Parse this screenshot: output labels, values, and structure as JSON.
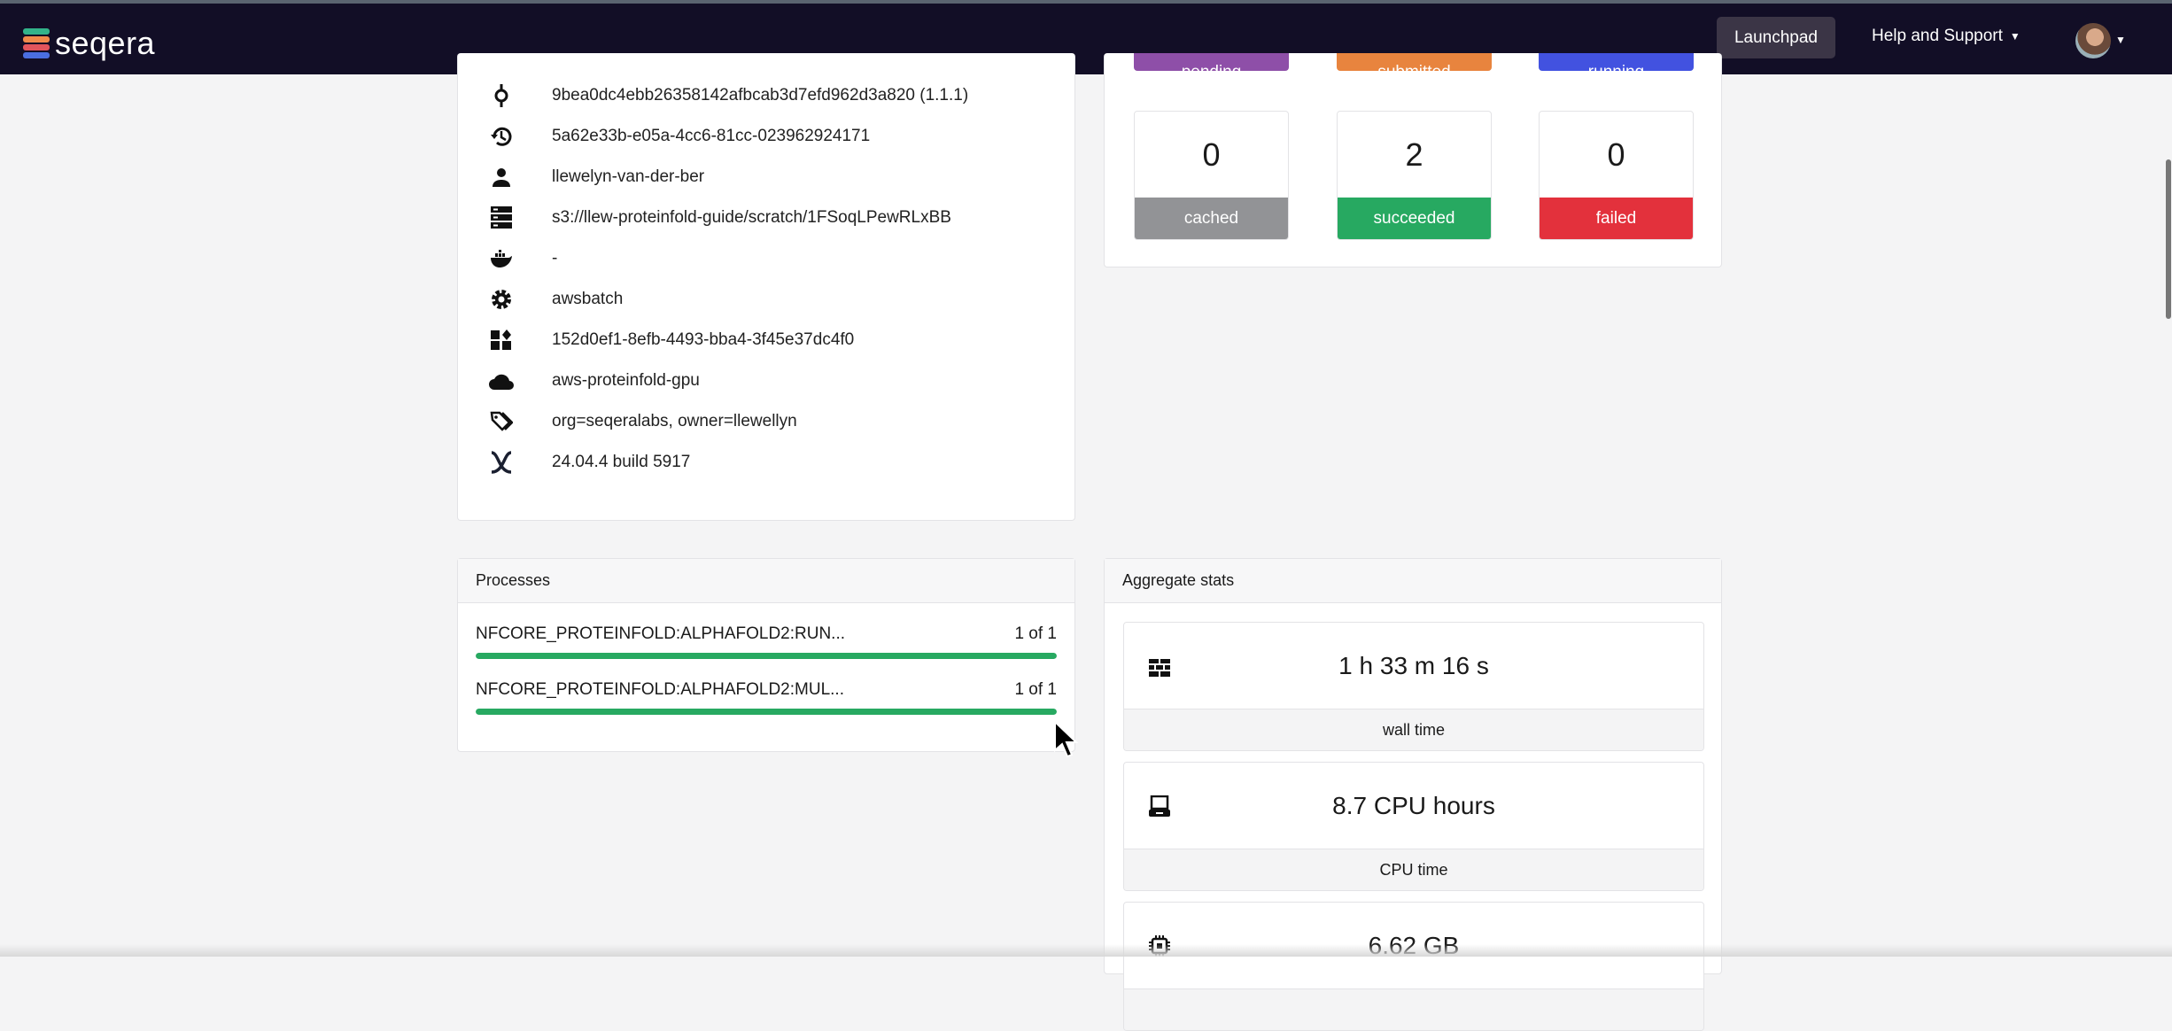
{
  "nav": {
    "brand": "seqera",
    "launchpad": "Launchpad",
    "help": "Help and Support"
  },
  "info": [
    {
      "icon": "commit-icon",
      "text": "9bea0dc4ebb26358142afbcab3d7efd962d3a820 (1.1.1)"
    },
    {
      "icon": "history-icon",
      "text": "5a62e33b-e05a-4cc6-81cc-023962924171"
    },
    {
      "icon": "user-icon",
      "text": "llewelyn-van-der-ber"
    },
    {
      "icon": "storage-icon",
      "text": "s3://llew-proteinfold-guide/scratch/1FSoqLPewRLxBB"
    },
    {
      "icon": "docker-icon",
      "text": "-"
    },
    {
      "icon": "gear-icon",
      "text": "awsbatch"
    },
    {
      "icon": "widgets-icon",
      "text": "152d0ef1-8efb-4493-bba4-3f45e37dc4f0"
    },
    {
      "icon": "cloud-icon",
      "text": "aws-proteinfold-gpu"
    },
    {
      "icon": "tags-icon",
      "text": "org=seqeralabs, owner=llewellyn"
    },
    {
      "icon": "nextflow-icon",
      "text": "24.04.4 build 5917"
    }
  ],
  "status_top": [
    {
      "label": "pending",
      "color": "#8e4fa8"
    },
    {
      "label": "submitted",
      "color": "#e8843e"
    },
    {
      "label": "running",
      "color": "#4252e0"
    }
  ],
  "status": [
    {
      "value": "0",
      "label": "cached",
      "color": "#929396"
    },
    {
      "value": "2",
      "label": "succeeded",
      "color": "#27a961"
    },
    {
      "value": "0",
      "label": "failed",
      "color": "#e3313c"
    }
  ],
  "processes": {
    "title": "Processes",
    "items": [
      {
        "name": "NFCORE_PROTEINFOLD:ALPHAFOLD2:RUN...",
        "count": "1 of 1",
        "progress_percent": 100
      },
      {
        "name": "NFCORE_PROTEINFOLD:ALPHAFOLD2:MUL...",
        "count": "1 of 1",
        "progress_percent": 100
      }
    ]
  },
  "aggregate": {
    "title": "Aggregate stats",
    "items": [
      {
        "icon": "wall-icon",
        "value": "1 h 33 m 16 s",
        "label": "wall time"
      },
      {
        "icon": "computer-icon",
        "value": "8.7 CPU hours",
        "label": "CPU time"
      },
      {
        "icon": "memory-chip-icon",
        "value": "6.62 GB",
        "label": ""
      }
    ]
  }
}
